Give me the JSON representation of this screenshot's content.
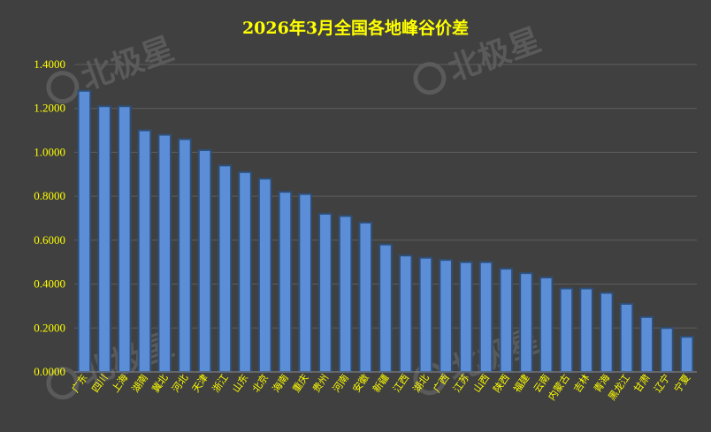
{
  "chart_data": {
    "type": "bar",
    "title": "2026年3月全国各地峰谷价差",
    "categories": [
      "广东",
      "四川",
      "上海",
      "湖南",
      "冀北",
      "河北",
      "天津",
      "浙江",
      "山东",
      "北京",
      "海南",
      "重庆",
      "贵州",
      "河南",
      "安徽",
      "新疆",
      "江西",
      "湖北",
      "广西",
      "江苏",
      "山西",
      "陕西",
      "福建",
      "云南",
      "内蒙古",
      "吉林",
      "青海",
      "黑龙江",
      "甘肃",
      "辽宁",
      "宁夏"
    ],
    "values": [
      1.28,
      1.21,
      1.21,
      1.1,
      1.08,
      1.06,
      1.01,
      0.94,
      0.91,
      0.88,
      0.82,
      0.81,
      0.72,
      0.71,
      0.68,
      0.58,
      0.53,
      0.52,
      0.51,
      0.5,
      0.5,
      0.47,
      0.45,
      0.43,
      0.38,
      0.38,
      0.36,
      0.31,
      0.25,
      0.2,
      0.16
    ],
    "ylim": [
      0,
      1.4
    ],
    "yticks": [
      "0.0000",
      "0.2000",
      "0.4000",
      "0.6000",
      "0.8000",
      "1.0000",
      "1.2000",
      "1.4000"
    ],
    "grid": true,
    "legend": "none",
    "colors": {
      "background": "#404040",
      "bar": "#5b8ed6",
      "bar_edge": "#2e4f7a",
      "text": "#ffff00",
      "grid": "#5e5e5e"
    }
  },
  "watermark": "北极星"
}
